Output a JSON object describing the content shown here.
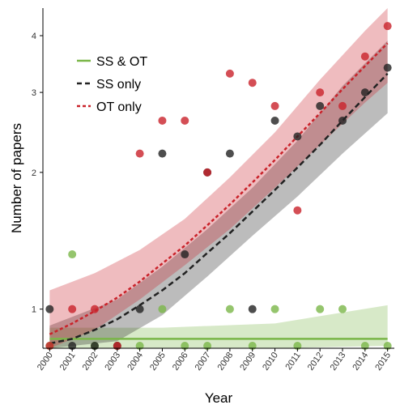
{
  "chart_data": {
    "type": "scatter",
    "xlabel": "Year",
    "ylabel": "Number of papers",
    "x_ticks": [
      "2000",
      "2001",
      "2002",
      "2003",
      "2004",
      "2005",
      "2006",
      "2007",
      "2008",
      "2009",
      "2010",
      "2011",
      "2012",
      "2013",
      "2014",
      "2015"
    ],
    "y_ticks": [
      "1",
      "2",
      "3",
      "4"
    ],
    "xlim": [
      1999.7,
      2015.3
    ],
    "ylim": [
      0.82,
      4.6
    ],
    "y_scale": "log",
    "grid": false,
    "legend_position": "top-left",
    "series": [
      {
        "name": "SS & OT",
        "color": "#7ab648",
        "line_style": "solid",
        "points": [
          [
            2000,
            0.83
          ],
          [
            2001,
            1.32
          ],
          [
            2002,
            0.83
          ],
          [
            2003,
            0.83
          ],
          [
            2004,
            0.83
          ],
          [
            2005,
            1.0
          ],
          [
            2006,
            0.83
          ],
          [
            2007,
            0.83
          ],
          [
            2008,
            1.0
          ],
          [
            2009,
            0.83
          ],
          [
            2010,
            1.0
          ],
          [
            2011,
            0.83
          ],
          [
            2012,
            1.0
          ],
          [
            2013,
            1.0
          ],
          [
            2014,
            0.83
          ],
          [
            2015,
            0.83
          ]
        ],
        "fit": [
          [
            2000,
            0.86
          ],
          [
            2015,
            0.86
          ]
        ],
        "ci": [
          [
            2000,
            0.82,
            0.91
          ],
          [
            2005,
            0.82,
            0.91
          ],
          [
            2010,
            0.82,
            0.93
          ],
          [
            2015,
            0.83,
            1.02
          ]
        ]
      },
      {
        "name": "SS only",
        "color": "#222222",
        "line_style": "dashed",
        "points": [
          [
            2000,
            1.0
          ],
          [
            2001,
            0.83
          ],
          [
            2002,
            0.83
          ],
          [
            2003,
            0.83
          ],
          [
            2004,
            1.0
          ],
          [
            2005,
            2.2
          ],
          [
            2006,
            1.32
          ],
          [
            2007,
            2.0
          ],
          [
            2008,
            2.2
          ],
          [
            2009,
            1.0
          ],
          [
            2010,
            2.6
          ],
          [
            2011,
            2.4
          ],
          [
            2012,
            2.8
          ],
          [
            2013,
            2.6
          ],
          [
            2014,
            3.0
          ],
          [
            2015,
            3.4
          ]
        ],
        "fit": [
          [
            2000,
            0.84
          ],
          [
            2001,
            0.86
          ],
          [
            2002,
            0.9
          ],
          [
            2003,
            0.95
          ],
          [
            2004,
            1.02
          ],
          [
            2005,
            1.1
          ],
          [
            2006,
            1.2
          ],
          [
            2007,
            1.33
          ],
          [
            2008,
            1.47
          ],
          [
            2009,
            1.64
          ],
          [
            2010,
            1.83
          ],
          [
            2011,
            2.05
          ],
          [
            2012,
            2.3
          ],
          [
            2013,
            2.6
          ],
          [
            2014,
            2.93
          ],
          [
            2015,
            3.3
          ]
        ],
        "ci": [
          [
            2000,
            0.82,
            0.92
          ],
          [
            2003,
            0.85,
            1.05
          ],
          [
            2005,
            0.97,
            1.24
          ],
          [
            2007,
            1.18,
            1.5
          ],
          [
            2009,
            1.45,
            1.85
          ],
          [
            2011,
            1.77,
            2.35
          ],
          [
            2013,
            2.2,
            3.1
          ],
          [
            2015,
            2.7,
            3.9
          ]
        ]
      },
      {
        "name": "OT only",
        "color": "#c9222a",
        "line_style": "dotted",
        "points": [
          [
            2000,
            0.83
          ],
          [
            2001,
            1.0
          ],
          [
            2002,
            1.0
          ],
          [
            2003,
            0.83
          ],
          [
            2004,
            2.2
          ],
          [
            2005,
            2.6
          ],
          [
            2006,
            2.6
          ],
          [
            2007,
            2.0
          ],
          [
            2008,
            3.3
          ],
          [
            2009,
            3.15
          ],
          [
            2010,
            2.8
          ],
          [
            2011,
            1.65
          ],
          [
            2012,
            3.0
          ],
          [
            2013,
            2.8
          ],
          [
            2014,
            3.6
          ],
          [
            2015,
            4.2
          ]
        ],
        "fit": [
          [
            2000,
            0.88
          ],
          [
            2001,
            0.93
          ],
          [
            2002,
            0.99
          ],
          [
            2003,
            1.06
          ],
          [
            2004,
            1.15
          ],
          [
            2005,
            1.26
          ],
          [
            2006,
            1.38
          ],
          [
            2007,
            1.53
          ],
          [
            2008,
            1.7
          ],
          [
            2009,
            1.9
          ],
          [
            2010,
            2.13
          ],
          [
            2011,
            2.4
          ],
          [
            2012,
            2.7
          ],
          [
            2013,
            3.05
          ],
          [
            2014,
            3.43
          ],
          [
            2015,
            3.85
          ]
        ],
        "ci": [
          [
            2000,
            0.82,
            1.1
          ],
          [
            2002,
            0.9,
            1.2
          ],
          [
            2004,
            1.05,
            1.35
          ],
          [
            2006,
            1.25,
            1.58
          ],
          [
            2008,
            1.5,
            1.95
          ],
          [
            2010,
            1.85,
            2.45
          ],
          [
            2012,
            2.3,
            3.2
          ],
          [
            2014,
            2.85,
            4.1
          ],
          [
            2015,
            3.15,
            4.6
          ]
        ]
      }
    ]
  }
}
